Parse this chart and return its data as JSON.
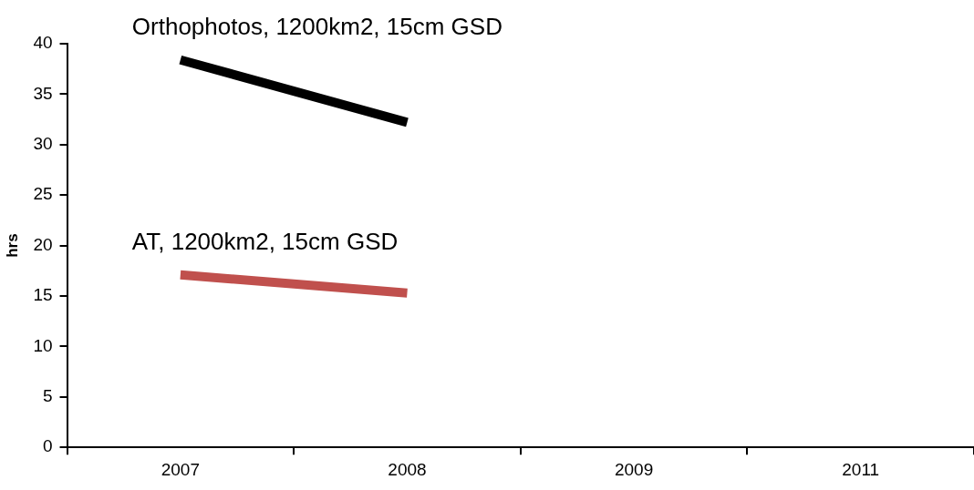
{
  "chart_data": {
    "type": "line",
    "ylabel": "hrs",
    "categories": [
      "2007",
      "2008",
      "2009",
      "2011"
    ],
    "ylim": [
      0,
      40
    ],
    "yticks": [
      0,
      5,
      10,
      15,
      20,
      25,
      30,
      35,
      40
    ],
    "grid": false,
    "legend": false,
    "marker": "none",
    "line_style": "solid",
    "series": [
      {
        "name": "Orthophotos, 1200km2, 15cm GSD",
        "color": "#000000",
        "values": [
          38.4,
          32.2,
          null,
          null
        ]
      },
      {
        "name": "AT, 1200km2, 15cm GSD",
        "color": "#c0504d",
        "values": [
          17.1,
          15.3,
          null,
          null
        ]
      }
    ]
  }
}
